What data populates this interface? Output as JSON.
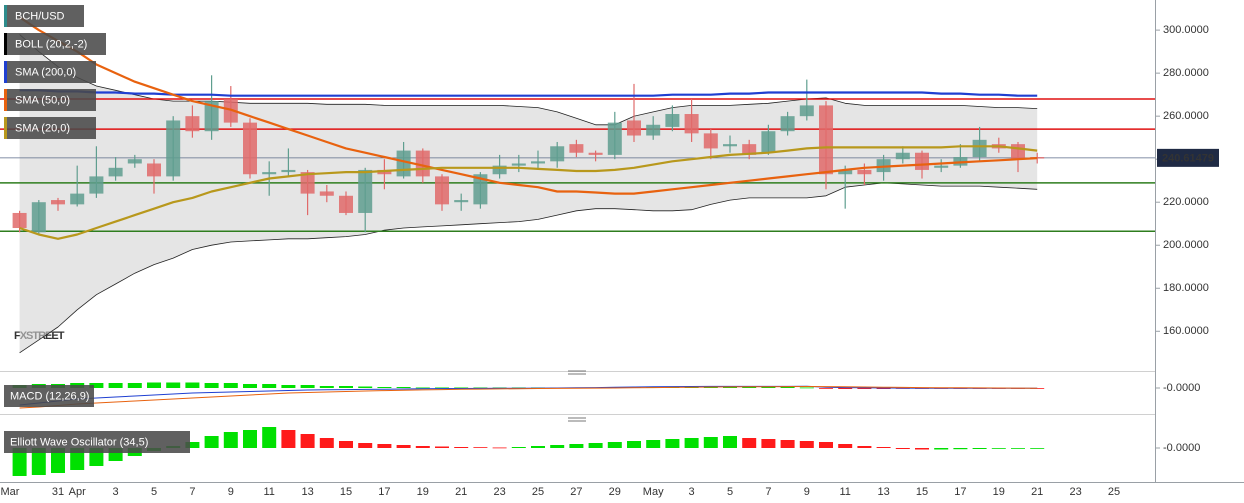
{
  "chart_data": [
    {
      "type": "candlestick",
      "title": "BCH/USD",
      "categories": [
        "Mar",
        null,
        "31",
        "Apr",
        null,
        "3",
        null,
        "5",
        null,
        "7",
        null,
        "9",
        null,
        "11",
        null,
        "13",
        null,
        "15",
        null,
        "17",
        null,
        "19",
        null,
        "21",
        null,
        "23",
        null,
        "25",
        null,
        "27",
        null,
        "29",
        null,
        "May",
        null,
        "3",
        null,
        "5",
        null,
        "7",
        null,
        "9",
        null,
        "11",
        null,
        "13",
        null,
        "15",
        null,
        "17",
        null,
        "19",
        null,
        "21",
        null,
        "23",
        null,
        "25"
      ],
      "open": [
        215,
        206,
        221,
        219,
        224,
        232,
        238,
        238,
        232,
        260,
        253,
        268,
        257,
        233,
        234,
        234,
        225,
        223,
        215,
        235,
        232,
        244,
        232,
        220,
        219,
        233,
        237,
        238,
        239,
        247,
        243,
        242,
        258,
        251,
        255,
        261,
        252,
        246,
        247,
        243,
        253,
        260,
        265,
        233,
        235,
        234,
        240,
        243,
        236,
        237,
        241,
        247,
        247,
        241,
        null,
        null,
        null,
        null
      ],
      "high": [
        216,
        221,
        222,
        237,
        246,
        241,
        242,
        240,
        260,
        265,
        279,
        274,
        259,
        239,
        245,
        235,
        228,
        225,
        236,
        240,
        248,
        245,
        233,
        224,
        234,
        242,
        242,
        244,
        248,
        249,
        244,
        262,
        275,
        260,
        265,
        268,
        254,
        251,
        249,
        256,
        262,
        277,
        267,
        237,
        238,
        242,
        246,
        244,
        240,
        247,
        255,
        250,
        248,
        243,
        null,
        null,
        null,
        null
      ],
      "low": [
        206,
        205,
        216,
        218,
        222,
        230,
        236,
        224,
        230,
        250,
        249,
        255,
        231,
        223,
        232,
        214,
        220,
        214,
        206,
        226,
        231,
        229,
        216,
        216,
        217,
        231,
        234,
        235,
        236,
        241,
        239,
        240,
        248,
        249,
        253,
        248,
        240,
        243,
        240,
        242,
        251,
        258,
        226,
        217,
        228,
        230,
        238,
        231,
        234,
        236,
        239,
        243,
        234,
        238,
        null,
        null,
        null,
        null
      ],
      "close": [
        208,
        220,
        219,
        224,
        232,
        236,
        240,
        232,
        258,
        253,
        267,
        257,
        233,
        234,
        235,
        224,
        223,
        215,
        235,
        233,
        244,
        232,
        219,
        221,
        233,
        237,
        238,
        239,
        246,
        243,
        242,
        257,
        251,
        256,
        261,
        252,
        245,
        247,
        242,
        253,
        260,
        265,
        233,
        235,
        233,
        240,
        243,
        235,
        237,
        241,
        249,
        245,
        240,
        240.6,
        null,
        null,
        null,
        null
      ],
      "up_color": "#5f9e8f",
      "down_color": "#e06a6a",
      "bollinger": {
        "name": "BOLL (20,2,-2)",
        "color": "#222222",
        "fill": "#d4d4d4",
        "upper": [
          298,
          290,
          283,
          278,
          274,
          272,
          270,
          268,
          267,
          267,
          267,
          266.5,
          266,
          266,
          266,
          266,
          265.5,
          265.5,
          265.5,
          265,
          265,
          265,
          265,
          265,
          265,
          265,
          264.5,
          264,
          262,
          259,
          256,
          256,
          260,
          262,
          264,
          265,
          265,
          265,
          265.5,
          266,
          267,
          268,
          268.5,
          266,
          265,
          265,
          265,
          265,
          265,
          265,
          264.5,
          264,
          264,
          263.5,
          null,
          null,
          null,
          null
        ],
        "lower": [
          150,
          156,
          162,
          170,
          177,
          182,
          187,
          191,
          194,
          198,
          200,
          201.5,
          202,
          202.5,
          203,
          203,
          203.5,
          204,
          205,
          207,
          208,
          208.5,
          209,
          209.5,
          210,
          210.5,
          211,
          212,
          214,
          216,
          217,
          217,
          216.5,
          216,
          216,
          216.5,
          219,
          221,
          222,
          222,
          222,
          222,
          223,
          227,
          228,
          229,
          228.5,
          228,
          227.5,
          227.5,
          227.5,
          227,
          226.5,
          226,
          null,
          null,
          null,
          null
        ]
      },
      "series": [
        {
          "name": "SMA (200,0)",
          "color": "#1f3fd1",
          "values": [
            272,
            272,
            271.5,
            271.5,
            271,
            271,
            270.5,
            270.5,
            270,
            270,
            270,
            269.5,
            269.5,
            269.5,
            269.5,
            269.5,
            269.5,
            269.5,
            269.5,
            269.5,
            269.5,
            269.5,
            269.5,
            269.5,
            269.5,
            269.5,
            269.5,
            269.5,
            269.5,
            269.5,
            269.5,
            269.5,
            269.5,
            269.5,
            270,
            270,
            270,
            270.5,
            270.5,
            271,
            271,
            271,
            271,
            271,
            271,
            271,
            271,
            271,
            270.5,
            270.5,
            270,
            270,
            269.5,
            269.5,
            null,
            null,
            null,
            null
          ]
        },
        {
          "name": "SMA (50,0)",
          "color": "#e8620f",
          "values": [
            306,
            300,
            295,
            290,
            284,
            280,
            276,
            273,
            270,
            267,
            265,
            263,
            260,
            257,
            254,
            251,
            248,
            245,
            243,
            241,
            239,
            237,
            235,
            233,
            231,
            229,
            228,
            227,
            225,
            225,
            224.5,
            224,
            224,
            225,
            226,
            227,
            228,
            229,
            230,
            231,
            232,
            233,
            234,
            235,
            236,
            236.5,
            237,
            237.5,
            238,
            238.5,
            239,
            239.5,
            240,
            240.5,
            null,
            null,
            null,
            null
          ]
        },
        {
          "name": "SMA (20,0)",
          "color": "#b8981c",
          "values": [
            208,
            205,
            203,
            205,
            208,
            211,
            214,
            217,
            220,
            222,
            225,
            227,
            229,
            231,
            232,
            233,
            233.5,
            234,
            234,
            234.5,
            235,
            235.5,
            236,
            236,
            236,
            236,
            236,
            235.5,
            235,
            234.5,
            234.5,
            235,
            236,
            237.5,
            239,
            240,
            241,
            242,
            242.5,
            243,
            244,
            245,
            245.5,
            245.5,
            245.5,
            245.5,
            245.5,
            245.5,
            245.5,
            246,
            246,
            246,
            245,
            244,
            null,
            null,
            null,
            null
          ]
        }
      ],
      "levels": [
        {
          "value": 268,
          "color": "#e01010"
        },
        {
          "value": 254,
          "color": "#e01010"
        },
        {
          "value": 229,
          "color": "#2e7d1e"
        },
        {
          "value": 206.5,
          "color": "#2e7d1e"
        }
      ],
      "last_price": 240.61479,
      "watermark": "FXSTREET",
      "ylim": [
        142,
        314
      ],
      "yticks": [
        {
          "value": 160,
          "label": "160.0000"
        },
        {
          "value": 180,
          "label": "180.0000"
        },
        {
          "value": 200,
          "label": "200.0000"
        },
        {
          "value": 220,
          "label": "220.0000"
        },
        {
          "value": 240,
          "label": "240.0000"
        },
        {
          "value": 260,
          "label": "260.0000"
        },
        {
          "value": 280,
          "label": "280.0000"
        },
        {
          "value": 300,
          "label": "300.0000"
        }
      ]
    },
    {
      "type": "histogram",
      "title": "MACD (12,26,9)",
      "color_by": "sign",
      "up_color": "#00e000",
      "down_color": "#ff1a1a",
      "values": [
        3,
        4,
        4,
        5,
        5,
        5,
        5,
        5.5,
        5.5,
        5.5,
        5,
        5,
        4,
        4,
        3,
        3,
        2,
        2,
        1.5,
        1,
        1,
        0.5,
        0.5,
        0.5,
        0.5,
        0.5,
        0.5,
        0.5,
        0.5,
        0.5,
        0.5,
        1,
        1,
        1,
        1,
        1,
        1,
        1,
        1,
        1,
        1,
        0.5,
        -0.5,
        -1,
        -1,
        -1,
        -0.5,
        -0.5,
        -0.5,
        -0.5,
        -0.5,
        -0.5,
        -0.5,
        -0.5,
        null,
        null,
        null,
        null
      ],
      "series": [
        {
          "color": "#1f3fd1",
          "values": [
            -17,
            -15,
            -13,
            -11,
            -10,
            -9,
            -8,
            -7,
            -6,
            -5,
            -4.5,
            -4,
            -3.5,
            -3,
            -2.5,
            -2,
            -1.8,
            -1.6,
            -1.4,
            -1.2,
            -1,
            -0.8,
            -0.6,
            -0.5,
            -0.4,
            -0.3,
            -0.2,
            -0.1,
            0,
            0.2,
            0.4,
            0.8,
            1,
            1.2,
            1.4,
            1.5,
            1.6,
            1.6,
            1.6,
            1.6,
            1.6,
            1.8,
            0.8,
            0.4,
            0.2,
            0,
            -0.1,
            -0.2,
            -0.2,
            -0.2,
            -0.2,
            -0.2,
            -0.3,
            -0.3,
            null,
            null,
            null,
            null
          ]
        },
        {
          "color": "#e8620f",
          "values": [
            -20,
            -19,
            -17.5,
            -16,
            -15,
            -14,
            -13,
            -12,
            -11,
            -10,
            -9,
            -8,
            -7,
            -6,
            -5,
            -4.5,
            -4,
            -3.5,
            -3,
            -2.6,
            -2.2,
            -1.9,
            -1.6,
            -1.3,
            -1.1,
            -0.9,
            -0.7,
            -0.5,
            -0.4,
            -0.3,
            -0.1,
            0,
            0.2,
            0.4,
            0.6,
            0.8,
            1,
            1.1,
            1.2,
            1.3,
            1.4,
            1.5,
            1.4,
            1.2,
            1,
            0.8,
            0.6,
            0.4,
            0.3,
            0.2,
            0.1,
            0,
            -0.1,
            -0.2,
            null,
            null,
            null,
            null
          ]
        }
      ],
      "ylim": [
        -22,
        13
      ],
      "yticks": [
        {
          "value": 0,
          "label": "-0.0000"
        }
      ]
    },
    {
      "type": "histogram",
      "title": "Elliott Wave Oscillator (34,5)",
      "color_by": "change",
      "up_color": "#00e000",
      "down_color": "#ff1a1a",
      "values": [
        -28,
        -27,
        -25,
        -22,
        -18,
        -13,
        -8,
        -3,
        2,
        6,
        12,
        16,
        18,
        21,
        18,
        14,
        10,
        7,
        5,
        4,
        3,
        2,
        1.5,
        1,
        0.8,
        0.5,
        1,
        2,
        3,
        4,
        5,
        6,
        7,
        8,
        9,
        10,
        11,
        12,
        10,
        9,
        8,
        7,
        6,
        4,
        2,
        1,
        -1,
        -1.5,
        -1.5,
        -1.2,
        -1,
        -0.8,
        -0.6,
        -0.5,
        null,
        null,
        null,
        null
      ],
      "ylim": [
        -34,
        23
      ],
      "yticks": [
        {
          "value": 0,
          "label": "-0.0000"
        }
      ]
    }
  ]
}
